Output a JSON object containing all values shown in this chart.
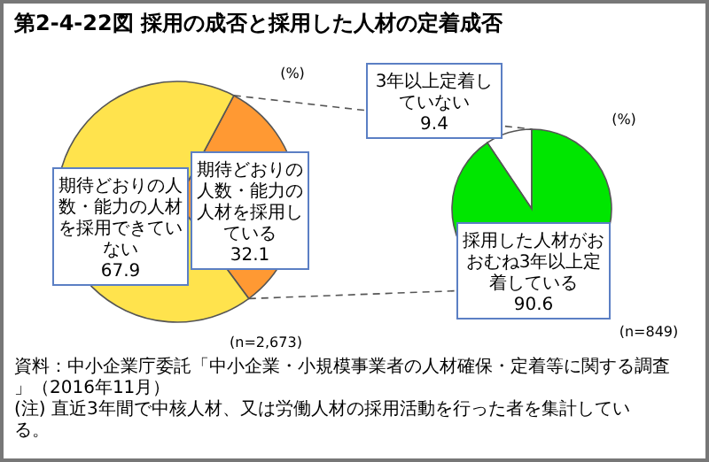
{
  "chart_data": [
    {
      "type": "pie",
      "title": "第2-4-22図 採用の成否と採用した人材の定着成否",
      "categories": [
        "期待どおりの人数・能力の人材を採用している",
        "期待どおりの人数・能力の人材を採用できていない"
      ],
      "values": [
        32.1,
        67.9
      ],
      "colors": [
        "#ff9933",
        "#ffe34d"
      ],
      "data_labels": true,
      "annotations": [
        "(%)",
        "(n=2,673)"
      ]
    },
    {
      "type": "pie",
      "categories": [
        "3年以上定着していない",
        "採用した人材がおおむね3年以上定着している"
      ],
      "values": [
        9.4,
        90.6
      ],
      "colors": [
        "#ffffff",
        "#00e600"
      ],
      "data_labels": true,
      "annotations": [
        "(%)",
        "(n=849)",
        "資料：中小企業庁委託「中小企業・小規模事業者の人材確保・定着等に関する調査」（2016年11月）",
        "(注) 直近3年間で中核人材、又は労働人材の採用活動を行った者を集計している。"
      ]
    }
  ]
}
